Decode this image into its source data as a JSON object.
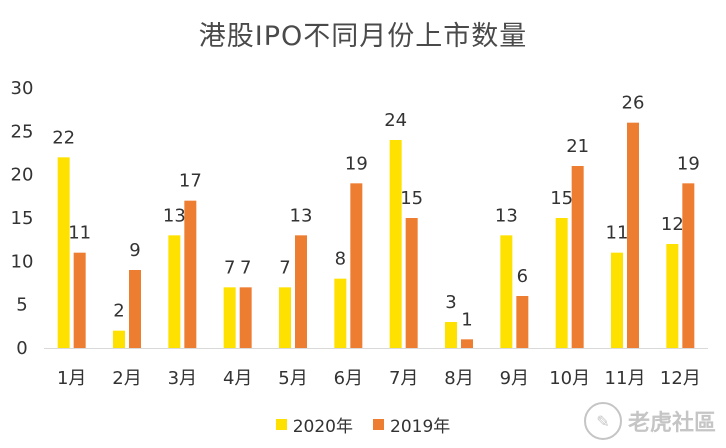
{
  "chart_data": {
    "type": "bar",
    "title": "港股IPO不同月份上市数量",
    "categories": [
      "1月",
      "2月",
      "3月",
      "4月",
      "5月",
      "6月",
      "7月",
      "8月",
      "9月",
      "10月",
      "11月",
      "12月"
    ],
    "series": [
      {
        "name": "2020年",
        "color": "#FFE100",
        "values": [
          22,
          2,
          13,
          7,
          7,
          8,
          24,
          3,
          13,
          15,
          11,
          12
        ]
      },
      {
        "name": "2019年",
        "color": "#ED7D31",
        "values": [
          11,
          9,
          17,
          7,
          13,
          19,
          15,
          1,
          6,
          21,
          26,
          19
        ]
      }
    ],
    "ylim": [
      0,
      30
    ],
    "yticks": [
      0,
      5,
      10,
      15,
      20,
      25,
      30
    ],
    "grid": false,
    "legend_position": "bottom"
  },
  "watermark": {
    "text": "老虎社區",
    "icon": "tiger-logo-icon"
  }
}
